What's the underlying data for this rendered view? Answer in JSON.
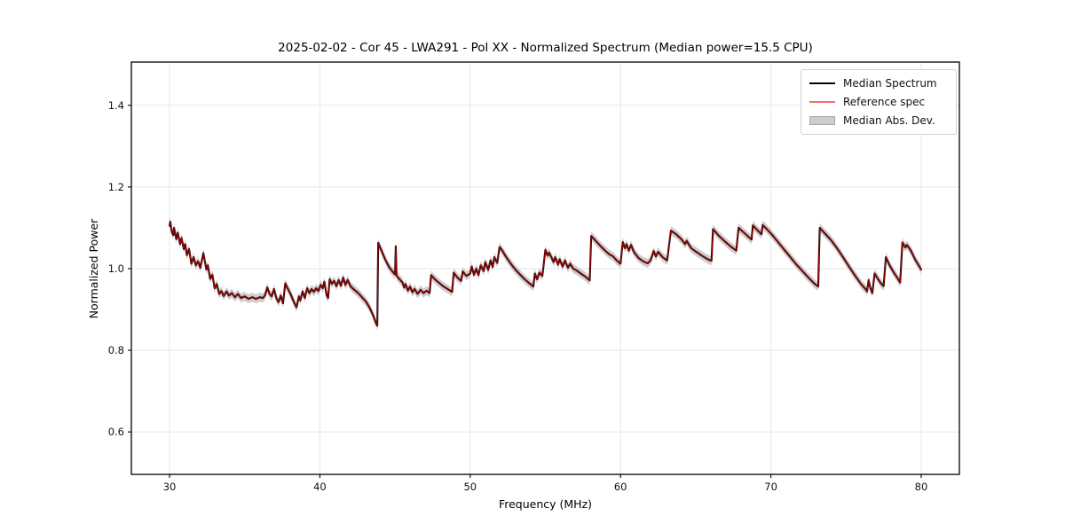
{
  "figure": {
    "title": "2025-02-02 - Cor 45 - LWA291 - Pol XX - Normalized Spectrum (Median power=15.5 CPU)",
    "xlabel": "Frequency (MHz)",
    "ylabel": "Normalized Power",
    "background_color": "#ffffff",
    "grid_color": "#e7e7e7",
    "spine_color": "#000000"
  },
  "legend": {
    "position": "upper right",
    "items": [
      {
        "label": "Median Spectrum",
        "type": "line",
        "color": "#000000"
      },
      {
        "label": "Reference spec",
        "type": "line",
        "color": "#f96f68"
      },
      {
        "label": "Median Abs. Dev.",
        "type": "patch",
        "color": "#cccccc",
        "border": "#a8a8a8"
      }
    ]
  },
  "chart_data": {
    "type": "line",
    "title": "2025-02-02 - Cor 45 - LWA291 - Pol XX - Normalized Spectrum (Median power=15.5 CPU)",
    "xlabel": "Frequency (MHz)",
    "ylabel": "Normalized Power",
    "xlim": [
      27.46,
      82.54
    ],
    "ylim": [
      0.496,
      1.506
    ],
    "xticks": [
      30,
      40,
      50,
      60,
      70,
      80
    ],
    "ytick_labels": [
      "0.6",
      "0.8",
      "1.0",
      "1.2",
      "1.4"
    ],
    "yticks": [
      0.6,
      0.8,
      1.0,
      1.2,
      1.4
    ],
    "grid": true,
    "legend_position": "upper right",
    "series": [
      {
        "name": "Median Spectrum",
        "color": "#000000",
        "width": 2.1,
        "opacity": 1.0,
        "points": [
          [
            30.0,
            1.105
          ],
          [
            30.05,
            1.115
          ],
          [
            30.15,
            1.09
          ],
          [
            30.25,
            1.082
          ],
          [
            30.3,
            1.1
          ],
          [
            30.45,
            1.072
          ],
          [
            30.55,
            1.088
          ],
          [
            30.7,
            1.06
          ],
          [
            30.8,
            1.075
          ],
          [
            30.95,
            1.048
          ],
          [
            31.05,
            1.06
          ],
          [
            31.15,
            1.033
          ],
          [
            31.3,
            1.048
          ],
          [
            31.45,
            1.012
          ],
          [
            31.6,
            1.028
          ],
          [
            31.75,
            1.008
          ],
          [
            31.9,
            1.018
          ],
          [
            32.05,
            1.002
          ],
          [
            32.25,
            1.038
          ],
          [
            32.45,
            0.998
          ],
          [
            32.55,
            1.008
          ],
          [
            32.7,
            0.975
          ],
          [
            32.85,
            0.985
          ],
          [
            33.0,
            0.952
          ],
          [
            33.15,
            0.962
          ],
          [
            33.3,
            0.938
          ],
          [
            33.45,
            0.945
          ],
          [
            33.6,
            0.933
          ],
          [
            33.8,
            0.944
          ],
          [
            33.95,
            0.934
          ],
          [
            34.15,
            0.94
          ],
          [
            34.35,
            0.93
          ],
          [
            34.55,
            0.938
          ],
          [
            34.75,
            0.928
          ],
          [
            35.0,
            0.932
          ],
          [
            35.25,
            0.926
          ],
          [
            35.5,
            0.93
          ],
          [
            35.75,
            0.926
          ],
          [
            36.0,
            0.93
          ],
          [
            36.2,
            0.928
          ],
          [
            36.35,
            0.934
          ],
          [
            36.5,
            0.954
          ],
          [
            36.65,
            0.938
          ],
          [
            36.8,
            0.932
          ],
          [
            36.95,
            0.95
          ],
          [
            37.1,
            0.928
          ],
          [
            37.25,
            0.918
          ],
          [
            37.4,
            0.934
          ],
          [
            37.55,
            0.915
          ],
          [
            37.7,
            0.964
          ],
          [
            37.85,
            0.952
          ],
          [
            38.05,
            0.938
          ],
          [
            38.25,
            0.92
          ],
          [
            38.45,
            0.905
          ],
          [
            38.6,
            0.932
          ],
          [
            38.7,
            0.922
          ],
          [
            38.85,
            0.944
          ],
          [
            39.0,
            0.928
          ],
          [
            39.15,
            0.952
          ],
          [
            39.3,
            0.94
          ],
          [
            39.45,
            0.95
          ],
          [
            39.6,
            0.943
          ],
          [
            39.75,
            0.952
          ],
          [
            39.9,
            0.945
          ],
          [
            40.05,
            0.96
          ],
          [
            40.2,
            0.952
          ],
          [
            40.3,
            0.968
          ],
          [
            40.45,
            0.934
          ],
          [
            40.55,
            0.928
          ],
          [
            40.65,
            0.974
          ],
          [
            40.8,
            0.963
          ],
          [
            40.95,
            0.97
          ],
          [
            41.1,
            0.957
          ],
          [
            41.25,
            0.972
          ],
          [
            41.4,
            0.958
          ],
          [
            41.55,
            0.978
          ],
          [
            41.7,
            0.96
          ],
          [
            41.85,
            0.972
          ],
          [
            42.05,
            0.956
          ],
          [
            42.3,
            0.948
          ],
          [
            42.55,
            0.94
          ],
          [
            42.8,
            0.93
          ],
          [
            43.05,
            0.92
          ],
          [
            43.3,
            0.905
          ],
          [
            43.55,
            0.885
          ],
          [
            43.75,
            0.865
          ],
          [
            43.82,
            0.86
          ],
          [
            43.88,
            1.063
          ],
          [
            44.1,
            1.044
          ],
          [
            44.35,
            1.022
          ],
          [
            44.6,
            1.004
          ],
          [
            44.85,
            0.992
          ],
          [
            45.0,
            0.986
          ],
          [
            45.05,
            1.055
          ],
          [
            45.1,
            0.982
          ],
          [
            45.3,
            0.974
          ],
          [
            45.5,
            0.966
          ],
          [
            45.6,
            0.954
          ],
          [
            45.7,
            0.962
          ],
          [
            45.85,
            0.946
          ],
          [
            46.0,
            0.956
          ],
          [
            46.15,
            0.942
          ],
          [
            46.3,
            0.95
          ],
          [
            46.5,
            0.938
          ],
          [
            46.7,
            0.948
          ],
          [
            46.9,
            0.94
          ],
          [
            47.1,
            0.946
          ],
          [
            47.3,
            0.94
          ],
          [
            47.4,
            0.984
          ],
          [
            47.65,
            0.974
          ],
          [
            47.9,
            0.966
          ],
          [
            48.2,
            0.957
          ],
          [
            48.5,
            0.95
          ],
          [
            48.8,
            0.943
          ],
          [
            48.9,
            0.99
          ],
          [
            49.15,
            0.978
          ],
          [
            49.4,
            0.97
          ],
          [
            49.5,
            0.993
          ],
          [
            49.75,
            0.982
          ],
          [
            50.0,
            0.988
          ],
          [
            50.1,
            1.005
          ],
          [
            50.25,
            0.985
          ],
          [
            50.4,
            1.0
          ],
          [
            50.55,
            0.984
          ],
          [
            50.7,
            1.008
          ],
          [
            50.9,
            0.994
          ],
          [
            51.0,
            1.016
          ],
          [
            51.2,
            0.997
          ],
          [
            51.35,
            1.02
          ],
          [
            51.5,
            1.004
          ],
          [
            51.6,
            1.028
          ],
          [
            51.8,
            1.014
          ],
          [
            51.95,
            1.053
          ],
          [
            52.1,
            1.046
          ],
          [
            52.4,
            1.028
          ],
          [
            52.7,
            1.012
          ],
          [
            53.0,
            0.998
          ],
          [
            53.3,
            0.986
          ],
          [
            53.6,
            0.975
          ],
          [
            53.9,
            0.965
          ],
          [
            54.2,
            0.956
          ],
          [
            54.3,
            0.988
          ],
          [
            54.45,
            0.974
          ],
          [
            54.6,
            0.99
          ],
          [
            54.8,
            0.982
          ],
          [
            55.0,
            1.046
          ],
          [
            55.15,
            1.032
          ],
          [
            55.25,
            1.039
          ],
          [
            55.45,
            1.024
          ],
          [
            55.55,
            1.016
          ],
          [
            55.65,
            1.028
          ],
          [
            55.85,
            1.01
          ],
          [
            55.95,
            1.023
          ],
          [
            56.15,
            1.005
          ],
          [
            56.3,
            1.02
          ],
          [
            56.5,
            1.002
          ],
          [
            56.65,
            1.012
          ],
          [
            56.85,
            1.0
          ],
          [
            57.1,
            0.995
          ],
          [
            57.35,
            0.988
          ],
          [
            57.6,
            0.982
          ],
          [
            57.8,
            0.976
          ],
          [
            57.95,
            0.971
          ],
          [
            58.05,
            1.08
          ],
          [
            58.35,
            1.068
          ],
          [
            58.65,
            1.056
          ],
          [
            58.95,
            1.045
          ],
          [
            59.25,
            1.035
          ],
          [
            59.5,
            1.03
          ],
          [
            59.75,
            1.02
          ],
          [
            60.0,
            1.012
          ],
          [
            60.15,
            1.065
          ],
          [
            60.3,
            1.05
          ],
          [
            60.4,
            1.06
          ],
          [
            60.55,
            1.044
          ],
          [
            60.7,
            1.058
          ],
          [
            60.9,
            1.04
          ],
          [
            61.2,
            1.026
          ],
          [
            61.5,
            1.018
          ],
          [
            61.8,
            1.013
          ],
          [
            62.0,
            1.02
          ],
          [
            62.2,
            1.043
          ],
          [
            62.35,
            1.03
          ],
          [
            62.5,
            1.041
          ],
          [
            62.8,
            1.028
          ],
          [
            63.1,
            1.02
          ],
          [
            63.35,
            1.093
          ],
          [
            63.7,
            1.084
          ],
          [
            64.05,
            1.072
          ],
          [
            64.3,
            1.06
          ],
          [
            64.4,
            1.068
          ],
          [
            64.7,
            1.05
          ],
          [
            65.0,
            1.042
          ],
          [
            65.4,
            1.032
          ],
          [
            65.8,
            1.023
          ],
          [
            66.05,
            1.019
          ],
          [
            66.15,
            1.097
          ],
          [
            66.5,
            1.082
          ],
          [
            66.9,
            1.068
          ],
          [
            67.3,
            1.055
          ],
          [
            67.7,
            1.044
          ],
          [
            67.85,
            1.1
          ],
          [
            68.15,
            1.09
          ],
          [
            68.45,
            1.08
          ],
          [
            68.72,
            1.071
          ],
          [
            68.8,
            1.106
          ],
          [
            69.1,
            1.094
          ],
          [
            69.38,
            1.084
          ],
          [
            69.45,
            1.107
          ],
          [
            69.7,
            1.098
          ],
          [
            70.1,
            1.082
          ],
          [
            70.5,
            1.064
          ],
          [
            70.9,
            1.046
          ],
          [
            71.3,
            1.028
          ],
          [
            71.7,
            1.01
          ],
          [
            72.1,
            0.994
          ],
          [
            72.5,
            0.978
          ],
          [
            72.9,
            0.963
          ],
          [
            73.15,
            0.956
          ],
          [
            73.25,
            1.1
          ],
          [
            73.6,
            1.086
          ],
          [
            74.0,
            1.07
          ],
          [
            74.4,
            1.05
          ],
          [
            74.8,
            1.028
          ],
          [
            75.2,
            1.005
          ],
          [
            75.6,
            0.983
          ],
          [
            76.0,
            0.962
          ],
          [
            76.3,
            0.95
          ],
          [
            76.4,
            0.944
          ],
          [
            76.5,
            0.972
          ],
          [
            76.62,
            0.952
          ],
          [
            76.75,
            0.94
          ],
          [
            76.9,
            0.988
          ],
          [
            77.1,
            0.976
          ],
          [
            77.3,
            0.965
          ],
          [
            77.5,
            0.957
          ],
          [
            77.65,
            1.028
          ],
          [
            77.9,
            1.008
          ],
          [
            78.15,
            0.992
          ],
          [
            78.4,
            0.978
          ],
          [
            78.6,
            0.966
          ],
          [
            78.75,
            1.064
          ],
          [
            78.95,
            1.052
          ],
          [
            79.05,
            1.058
          ],
          [
            79.3,
            1.045
          ],
          [
            79.6,
            1.022
          ],
          [
            80.0,
            0.998
          ]
        ]
      },
      {
        "name": "Reference spec",
        "color": "#ff0000",
        "width": 1.3,
        "opacity": 0.6,
        "points_same_as": "Median Spectrum"
      },
      {
        "name": "Median Abs. Dev.",
        "type": "band",
        "color": "#c9c9c9",
        "opacity": 0.9,
        "half_width": 0.011,
        "points_same_as": "Median Spectrum"
      }
    ]
  }
}
